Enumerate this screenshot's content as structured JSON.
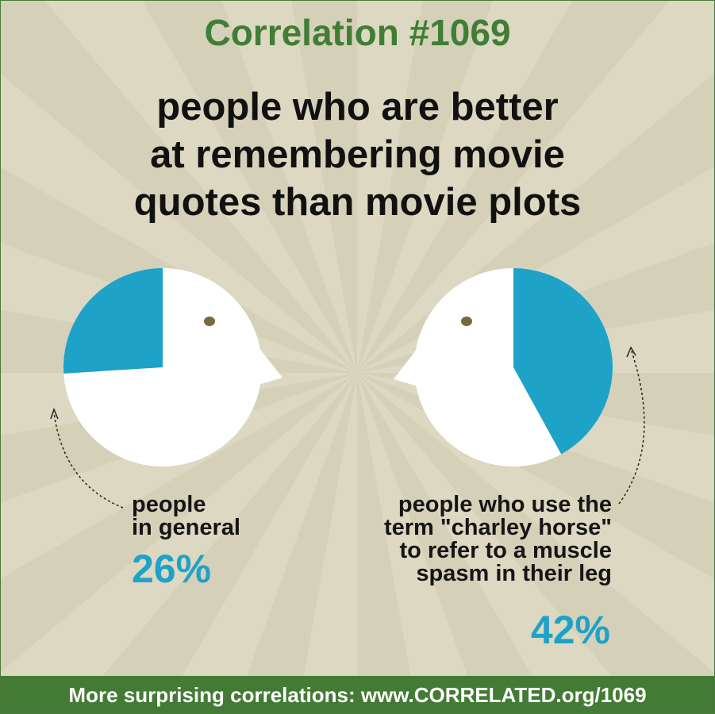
{
  "header": {
    "correlation_label": "Correlation #1069",
    "title_lines": [
      "people who are better",
      "at remembering movie",
      "quotes than movie plots"
    ]
  },
  "colors": {
    "accent": "#1ea2c8",
    "title_green": "#3f7e34",
    "footer_green": "#437b35",
    "head": "#ffffff",
    "eye": "#7a6a3a"
  },
  "chart_data": [
    {
      "type": "pie",
      "title": "",
      "categories": [
        "people in general"
      ],
      "values": [
        26
      ],
      "value_label": "26%",
      "label_lines": [
        "people",
        "in general"
      ]
    },
    {
      "type": "pie",
      "title": "",
      "categories": [
        "people who use the term \"charley horse\" to refer to a muscle spasm in their leg"
      ],
      "values": [
        42
      ],
      "value_label": "42%",
      "label_lines": [
        "people who use the",
        "term \"charley horse\"",
        "to refer to a muscle",
        "spasm in their leg"
      ]
    }
  ],
  "footer": {
    "text": "More surprising correlations: www.CORRELATED.org/1069"
  }
}
